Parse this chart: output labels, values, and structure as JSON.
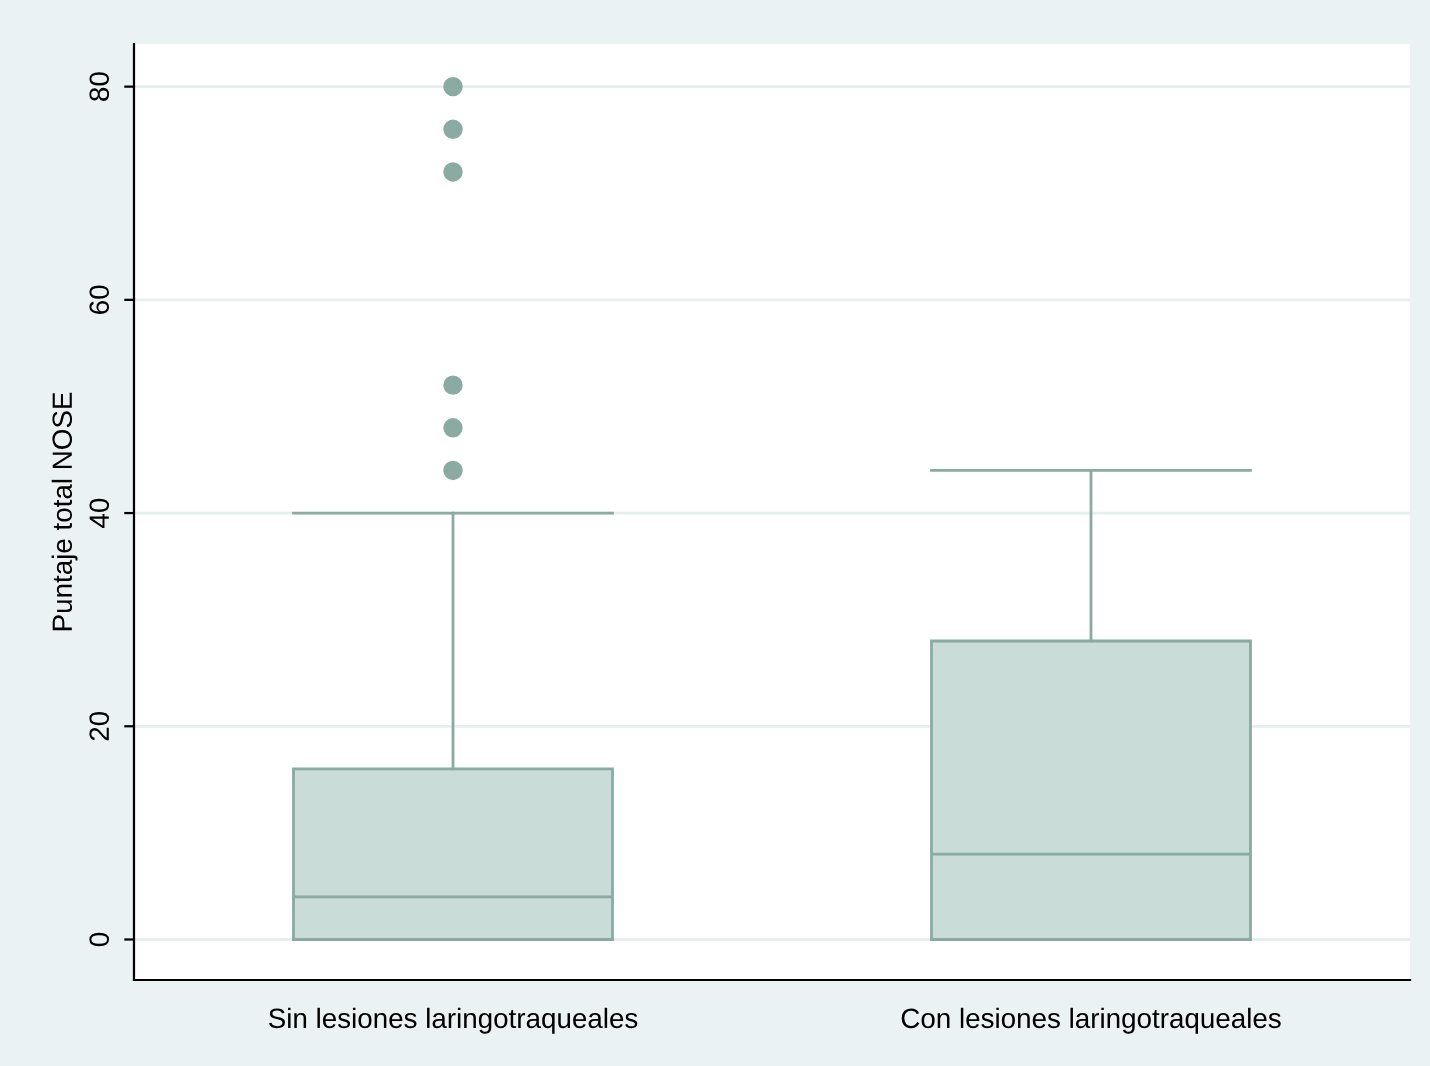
{
  "chart_data": {
    "type": "box",
    "ylabel": "Puntaje total NOSE",
    "categories": [
      "Sin lesiones laringotraqueales",
      "Con lesiones laringotraqueales"
    ],
    "boxes": [
      {
        "low": 0,
        "q1": 0,
        "median": 4,
        "q3": 16,
        "high": 40,
        "outliers": [
          44,
          48,
          52,
          72,
          76,
          80
        ]
      },
      {
        "low": 0,
        "q1": 0,
        "median": 8,
        "q3": 28,
        "high": 44
      }
    ],
    "color": "#c9dcd7",
    "ylim": [
      -3.8,
      84
    ],
    "yticks": [
      0,
      20,
      40,
      60,
      80
    ],
    "grid": "y"
  }
}
